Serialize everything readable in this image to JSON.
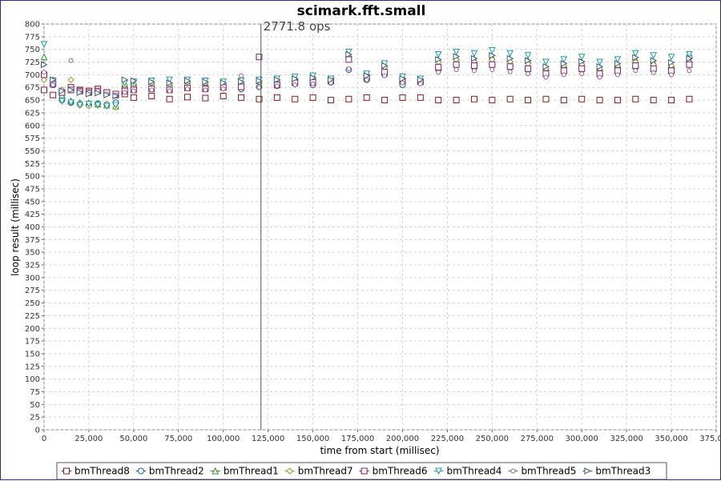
{
  "chart_data": {
    "type": "scatter",
    "title": "scimark.fft.small",
    "xlabel": "time from start (millisec)",
    "ylabel": "loop result (millisec)",
    "annotation": "2771.8 ops",
    "annotation_x": 121000,
    "xlim": [
      0,
      375000
    ],
    "ylim": [
      0,
      800
    ],
    "x_ticks": [
      0,
      25000,
      50000,
      75000,
      100000,
      125000,
      150000,
      175000,
      200000,
      225000,
      250000,
      275000,
      300000,
      325000,
      350000,
      375000
    ],
    "x_tick_labels": [
      "0",
      "25,000",
      "50,000",
      "75,000",
      "100,000",
      "125,000",
      "150,000",
      "175,000",
      "200,000",
      "225,000",
      "250,000",
      "275,000",
      "300,000",
      "325,000",
      "350,000",
      "375,000"
    ],
    "y_ticks": [
      0,
      25,
      50,
      75,
      100,
      125,
      150,
      175,
      200,
      225,
      250,
      275,
      300,
      325,
      350,
      375,
      400,
      425,
      450,
      475,
      500,
      525,
      550,
      575,
      600,
      625,
      650,
      675,
      700,
      725,
      750,
      775,
      800
    ],
    "grid": true,
    "legend_position": "bottom",
    "series": [
      {
        "name": "bmThread8",
        "color": "#8b1a1a",
        "marker": "square",
        "x": [
          0,
          5000,
          10000,
          15000,
          20000,
          25000,
          30000,
          35000,
          40000,
          45000,
          50000,
          60000,
          70000,
          80000,
          90000,
          100000,
          110000,
          120000,
          130000,
          140000,
          150000,
          160000,
          170000,
          180000,
          190000,
          200000,
          210000,
          220000,
          230000,
          240000,
          250000,
          260000,
          270000,
          280000,
          290000,
          300000,
          310000,
          320000,
          330000,
          340000,
          350000,
          360000
        ],
        "y": [
          670,
          660,
          665,
          675,
          670,
          668,
          672,
          665,
          660,
          662,
          655,
          658,
          652,
          656,
          654,
          658,
          655,
          652,
          655,
          652,
          655,
          650,
          652,
          655,
          650,
          655,
          655,
          650,
          650,
          652,
          650,
          652,
          650,
          652,
          650,
          652,
          650,
          650,
          652,
          650,
          650,
          652
        ]
      },
      {
        "name": "bmThread2",
        "color": "#1f5fa0",
        "marker": "circle",
        "x": [
          0,
          5000,
          10000,
          15000,
          20000,
          25000,
          30000,
          35000,
          40000,
          45000,
          50000,
          60000,
          70000,
          80000,
          90000,
          100000,
          110000,
          120000,
          130000,
          140000,
          150000,
          160000,
          170000,
          180000,
          190000,
          200000,
          210000,
          220000,
          230000,
          240000,
          250000,
          260000,
          270000,
          280000,
          290000,
          300000,
          310000,
          320000,
          330000,
          340000,
          350000,
          360000
        ],
        "y": [
          700,
          680,
          650,
          645,
          642,
          640,
          643,
          641,
          645,
          672,
          675,
          672,
          670,
          674,
          672,
          675,
          672,
          676,
          678,
          682,
          680,
          685,
          710,
          690,
          700,
          680,
          685,
          710,
          720,
          715,
          720,
          715,
          710,
          700,
          705,
          710,
          700,
          705,
          715,
          710,
          705,
          735
        ]
      },
      {
        "name": "bmThread1",
        "color": "#2e8b2e",
        "marker": "triangle-up",
        "x": [
          0,
          5000,
          10000,
          15000,
          20000,
          25000,
          30000,
          35000,
          40000,
          45000,
          50000,
          60000,
          70000,
          80000,
          90000,
          100000,
          110000,
          120000,
          130000,
          140000,
          150000,
          160000,
          170000,
          180000,
          190000,
          200000,
          210000,
          220000,
          230000,
          240000,
          250000,
          260000,
          270000,
          280000,
          290000,
          300000,
          310000,
          320000,
          330000,
          340000,
          350000,
          360000
        ],
        "y": [
          735,
          690,
          660,
          648,
          645,
          644,
          642,
          640,
          638,
          682,
          685,
          686,
          684,
          688,
          685,
          684,
          686,
          688,
          690,
          695,
          698,
          690,
          740,
          700,
          720,
          695,
          690,
          730,
          735,
          730,
          735,
          730,
          728,
          715,
          720,
          725,
          715,
          720,
          730,
          725,
          720,
          730
        ]
      },
      {
        "name": "bmThread7",
        "color": "#9a9a2a",
        "marker": "diamond",
        "x": [
          0,
          5000,
          10000,
          15000,
          20000,
          25000,
          30000,
          35000,
          40000,
          45000,
          50000,
          60000,
          70000,
          80000,
          90000,
          100000,
          110000,
          120000,
          130000,
          140000,
          150000,
          160000,
          170000,
          180000,
          190000,
          200000,
          210000,
          220000,
          230000,
          240000,
          250000,
          260000,
          270000,
          280000,
          290000,
          300000,
          310000,
          320000,
          330000,
          340000,
          350000,
          360000
        ],
        "y": [
          690,
          685,
          670,
          690,
          640,
          638,
          640,
          642,
          636,
          680,
          682,
          684,
          682,
          686,
          684,
          682,
          684,
          686,
          688,
          690,
          692,
          688,
          735,
          698,
          715,
          692,
          688,
          725,
          730,
          725,
          730,
          726,
          722,
          712,
          718,
          720,
          712,
          718,
          725,
          720,
          718,
          725
        ]
      },
      {
        "name": "bmThread6",
        "color": "#7a1f6a",
        "marker": "square-open",
        "x": [
          0,
          5000,
          10000,
          15000,
          20000,
          25000,
          30000,
          35000,
          40000,
          45000,
          50000,
          60000,
          70000,
          80000,
          90000,
          100000,
          110000,
          120000,
          130000,
          140000,
          150000,
          160000,
          170000,
          180000,
          190000,
          200000,
          210000,
          220000,
          230000,
          240000,
          250000,
          260000,
          270000,
          280000,
          290000,
          300000,
          310000,
          320000,
          330000,
          340000,
          350000,
          360000
        ],
        "y": [
          700,
          682,
          665,
          670,
          668,
          665,
          668,
          665,
          662,
          668,
          670,
          672,
          670,
          674,
          672,
          675,
          676,
          735,
          680,
          684,
          685,
          688,
          730,
          695,
          705,
          688,
          686,
          715,
          720,
          718,
          720,
          716,
          712,
          702,
          708,
          712,
          702,
          708,
          718,
          712,
          708,
          720
        ]
      },
      {
        "name": "bmThread4",
        "color": "#1a9aaa",
        "marker": "triangle-down",
        "x": [
          0,
          5000,
          10000,
          15000,
          20000,
          25000,
          30000,
          35000,
          40000,
          45000,
          50000,
          60000,
          70000,
          80000,
          90000,
          100000,
          110000,
          120000,
          130000,
          140000,
          150000,
          160000,
          170000,
          180000,
          190000,
          200000,
          210000,
          220000,
          230000,
          240000,
          250000,
          260000,
          270000,
          280000,
          290000,
          300000,
          310000,
          320000,
          330000,
          340000,
          350000,
          360000
        ],
        "y": [
          760,
          688,
          648,
          645,
          640,
          642,
          640,
          638,
          640,
          684,
          686,
          688,
          690,
          690,
          688,
          686,
          688,
          690,
          692,
          696,
          698,
          692,
          745,
          702,
          722,
          696,
          692,
          740,
          745,
          742,
          748,
          742,
          738,
          725,
          730,
          735,
          725,
          730,
          742,
          738,
          735,
          740
        ]
      },
      {
        "name": "bmThread5",
        "color": "#9a5a8a",
        "marker": "circle-small",
        "x": [
          0,
          5000,
          10000,
          15000,
          20000,
          25000,
          30000,
          35000,
          40000,
          45000,
          50000,
          60000,
          70000,
          80000,
          90000,
          100000,
          110000,
          120000,
          130000,
          140000,
          150000,
          160000,
          170000,
          180000,
          190000,
          200000,
          210000,
          220000,
          230000,
          240000,
          250000,
          260000,
          270000,
          280000,
          290000,
          300000,
          310000,
          320000,
          330000,
          340000,
          350000,
          360000
        ],
        "y": [
          705,
          680,
          670,
          728,
          668,
          665,
          668,
          662,
          660,
          665,
          668,
          670,
          668,
          672,
          670,
          672,
          698,
          675,
          678,
          680,
          682,
          684,
          712,
          690,
          698,
          684,
          682,
          705,
          710,
          708,
          710,
          706,
          702,
          695,
          700,
          702,
          695,
          700,
          708,
          704,
          700,
          708
        ]
      },
      {
        "name": "bmThread3",
        "color": "#3a5a7a",
        "marker": "triangle-right",
        "x": [
          0,
          5000,
          10000,
          15000,
          20000,
          25000,
          30000,
          35000,
          40000,
          45000,
          50000,
          60000,
          70000,
          80000,
          90000,
          100000,
          110000,
          120000,
          130000,
          140000,
          150000,
          160000,
          170000,
          180000,
          190000,
          200000,
          210000,
          220000,
          230000,
          240000,
          250000,
          260000,
          270000,
          280000,
          290000,
          300000,
          310000,
          320000,
          330000,
          340000,
          350000,
          360000
        ],
        "y": [
          720,
          690,
          668,
          670,
          665,
          662,
          664,
          660,
          658,
          690,
          688,
          686,
          684,
          688,
          686,
          684,
          686,
          688,
          690,
          692,
          694,
          690,
          740,
          698,
          718,
          692,
          690,
          730,
          736,
          732,
          738,
          732,
          728,
          716,
          722,
          726,
          716,
          722,
          734,
          728,
          724,
          732
        ]
      }
    ]
  }
}
